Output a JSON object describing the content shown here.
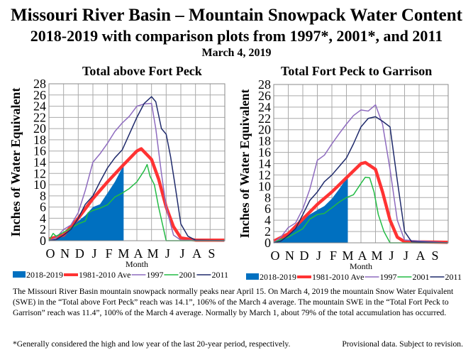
{
  "header": {
    "title": "Missouri River Basin – Mountain Snowpack Water Content",
    "subtitle": "2018-2019 with comparison plots from 1997*, 2001*, and 2011",
    "date": "March 4, 2019"
  },
  "description": "The Missouri River Basin mountain snowpack normally peaks near April 15.  On March 4, 2019 the mountain Snow Water Equivalent (SWE) in the “Total above Fort Peck” reach was 14.1”, 106% of the March 4 average.  The mountain SWE in the “Total Fort Peck to Garrison” reach was 11.4”, 100% of the March 4 average.  Normally by March 1, about 79% of the total accumulation has occurred.",
  "footnote": "*Generally considered the high and low year of the last 20-year period, respectively.",
  "provisional": "Provisional data.  Subject to revision.",
  "chart_data": [
    {
      "type": "line",
      "title": "Total above Fort Peck",
      "xlabel": "Month",
      "ylabel": "Inches of Water Equivalent",
      "ylim": [
        0,
        28
      ],
      "yticks": [
        0,
        2,
        4,
        6,
        8,
        10,
        12,
        14,
        16,
        18,
        20,
        22,
        24,
        26,
        28
      ],
      "xticks": [
        "O",
        "N",
        "D",
        "J",
        "F",
        "M",
        "A",
        "M",
        "J",
        "J",
        "A",
        "S"
      ],
      "grid": true,
      "legend": "bottom",
      "series": [
        {
          "name": "2018-2019",
          "style": "area",
          "color": "#0070C0",
          "points": [
            [
              "Oct 1",
              0
            ],
            [
              "Oct 16",
              0.3
            ],
            [
              "Nov 1",
              1
            ],
            [
              "Nov 16",
              2.5
            ],
            [
              "Dec 1",
              3.5
            ],
            [
              "Dec 16",
              4.5
            ],
            [
              "Jan 1",
              6
            ],
            [
              "Jan 16",
              6.5
            ],
            [
              "Feb 1",
              8.5
            ],
            [
              "Feb 15",
              10.5
            ],
            [
              "Mar 1",
              13
            ],
            [
              "Mar 4",
              14.1
            ]
          ]
        },
        {
          "name": "1981-2010 Ave",
          "style": "thick",
          "color": "#FF3333",
          "points": [
            [
              "Oct 1",
              0.3
            ],
            [
              "Nov 1",
              1
            ],
            [
              "Dec 1",
              4
            ],
            [
              "Jan 1",
              7.5
            ],
            [
              "Feb 1",
              10.5
            ],
            [
              "Mar 1",
              13.3
            ],
            [
              "Apr 1",
              16
            ],
            [
              "Apr 10",
              16.4
            ],
            [
              "May 1",
              14.5
            ],
            [
              "May 16",
              11
            ],
            [
              "Jun 1",
              6
            ],
            [
              "Jun 16",
              2.5
            ],
            [
              "Jul 1",
              0.5
            ],
            [
              "Aug 1",
              0.1
            ],
            [
              "Sep 30",
              0.1
            ]
          ]
        },
        {
          "name": "1997",
          "style": "line",
          "color": "#8E6BBF",
          "points": [
            [
              "Oct 1",
              0
            ],
            [
              "Oct 16",
              0.5
            ],
            [
              "Nov 1",
              2
            ],
            [
              "Nov 16",
              2.8
            ],
            [
              "Dec 1",
              5
            ],
            [
              "Dec 16",
              9
            ],
            [
              "Jan 1",
              14
            ],
            [
              "Jan 16",
              15.5
            ],
            [
              "Feb 1",
              17.4
            ],
            [
              "Feb 15",
              19.5
            ],
            [
              "Mar 1",
              21
            ],
            [
              "Mar 16",
              22.2
            ],
            [
              "Apr 1",
              24
            ],
            [
              "Apr 16",
              24.4
            ],
            [
              "May 1",
              24.5
            ],
            [
              "May 10",
              20
            ],
            [
              "May 22",
              12
            ],
            [
              "Jun 1",
              6
            ],
            [
              "Jun 16",
              1
            ],
            [
              "Jul 1",
              0.1
            ],
            [
              "Sep 30",
              0
            ]
          ]
        },
        {
          "name": "2001",
          "style": "line",
          "color": "#22BB44",
          "points": [
            [
              "Oct 1",
              0
            ],
            [
              "Oct 10",
              1.3
            ],
            [
              "Oct 16",
              0.8
            ],
            [
              "Nov 1",
              1.5
            ],
            [
              "Dec 1",
              3
            ],
            [
              "Dec 16",
              3.5
            ],
            [
              "Dec 22",
              5
            ],
            [
              "Jan 1",
              5.4
            ],
            [
              "Jan 16",
              5.8
            ],
            [
              "Feb 1",
              6.4
            ],
            [
              "Feb 15",
              7.8
            ],
            [
              "Mar 1",
              8.5
            ],
            [
              "Mar 16",
              9.3
            ],
            [
              "Apr 1",
              10.5
            ],
            [
              "Apr 16",
              12.5
            ],
            [
              "Apr 22",
              13.6
            ],
            [
              "Apr 28",
              11.5
            ],
            [
              "May 7",
              10
            ],
            [
              "May 16",
              6
            ],
            [
              "Jun 1",
              0
            ],
            [
              "Sep 30",
              0
            ]
          ]
        },
        {
          "name": "2011",
          "style": "line",
          "color": "#1F2A6B",
          "points": [
            [
              "Oct 1",
              0
            ],
            [
              "Oct 16",
              0.2
            ],
            [
              "Nov 1",
              1
            ],
            [
              "Nov 16",
              2
            ],
            [
              "Dec 1",
              4
            ],
            [
              "Dec 16",
              6.5
            ],
            [
              "Jan 1",
              8
            ],
            [
              "Jan 16",
              10.5
            ],
            [
              "Feb 1",
              13
            ],
            [
              "Feb 15",
              14.8
            ],
            [
              "Mar 1",
              16.2
            ],
            [
              "Mar 16",
              19
            ],
            [
              "Apr 1",
              22
            ],
            [
              "Apr 16",
              24.5
            ],
            [
              "May 1",
              25.7
            ],
            [
              "May 10",
              24.8
            ],
            [
              "May 22",
              20
            ],
            [
              "Jun 1",
              19
            ],
            [
              "Jun 10",
              15
            ],
            [
              "Jun 19",
              10
            ],
            [
              "Jul 1",
              3
            ],
            [
              "Jul 16",
              0.8
            ],
            [
              "Aug 1",
              0.1
            ],
            [
              "Sep 30",
              0
            ]
          ]
        }
      ]
    },
    {
      "type": "line",
      "title": "Total Fort Peck to Garrison",
      "xlabel": "Month",
      "ylabel": "Inches of Water Equivalent",
      "ylim": [
        0,
        28
      ],
      "yticks": [
        0,
        2,
        4,
        6,
        8,
        10,
        12,
        14,
        16,
        18,
        20,
        22,
        24,
        26,
        28
      ],
      "xticks": [
        "O",
        "N",
        "D",
        "J",
        "F",
        "M",
        "A",
        "M",
        "J",
        "J",
        "A",
        "S"
      ],
      "grid": true,
      "legend": "bottom",
      "series": [
        {
          "name": "2018-2019",
          "style": "area",
          "color": "#0070C0",
          "points": [
            [
              "Oct 1",
              0
            ],
            [
              "Oct 16",
              0.6
            ],
            [
              "Nov 1",
              1.3
            ],
            [
              "Nov 16",
              2.5
            ],
            [
              "Dec 1",
              4
            ],
            [
              "Dec 16",
              5
            ],
            [
              "Jan 1",
              5.8
            ],
            [
              "Jan 16",
              6.5
            ],
            [
              "Feb 1",
              7.8
            ],
            [
              "Feb 15",
              9.5
            ],
            [
              "Mar 1",
              11.4
            ],
            [
              "Mar 4",
              11.4
            ]
          ]
        },
        {
          "name": "1981-2010 Ave",
          "style": "thick",
          "color": "#FF3333",
          "points": [
            [
              "Oct 1",
              0.3
            ],
            [
              "Nov 1",
              1.6
            ],
            [
              "Dec 1",
              4.2
            ],
            [
              "Jan 1",
              6.8
            ],
            [
              "Feb 1",
              9
            ],
            [
              "Mar 1",
              11.5
            ],
            [
              "Apr 1",
              14
            ],
            [
              "Apr 10",
              14.2
            ],
            [
              "May 1",
              13
            ],
            [
              "May 16",
              9
            ],
            [
              "Jun 1",
              4
            ],
            [
              "Jun 16",
              1
            ],
            [
              "Jul 1",
              0.2
            ],
            [
              "Sep 30",
              0.1
            ]
          ]
        },
        {
          "name": "1997",
          "style": "line",
          "color": "#8E6BBF",
          "points": [
            [
              "Oct 1",
              0
            ],
            [
              "Oct 16",
              1
            ],
            [
              "Nov 1",
              2.7
            ],
            [
              "Nov 16",
              3.5
            ],
            [
              "Dec 1",
              6
            ],
            [
              "Dec 16",
              9.5
            ],
            [
              "Jan 1",
              14.6
            ],
            [
              "Jan 16",
              15.5
            ],
            [
              "Feb 1",
              17.5
            ],
            [
              "Feb 15",
              19.3
            ],
            [
              "Mar 1",
              21
            ],
            [
              "Mar 16",
              22.5
            ],
            [
              "Apr 1",
              23.5
            ],
            [
              "Apr 16",
              23.3
            ],
            [
              "May 1",
              24.4
            ],
            [
              "May 16",
              21
            ],
            [
              "Jun 1",
              13
            ],
            [
              "Jun 16",
              4
            ],
            [
              "Jul 1",
              0.5
            ],
            [
              "Sep 30",
              0
            ]
          ]
        },
        {
          "name": "2001",
          "style": "line",
          "color": "#22BB44",
          "points": [
            [
              "Oct 1",
              0
            ],
            [
              "Oct 16",
              0.6
            ],
            [
              "Nov 1",
              1
            ],
            [
              "Dec 1",
              2.5
            ],
            [
              "Dec 16",
              4.2
            ],
            [
              "Jan 1",
              5
            ],
            [
              "Jan 16",
              5.2
            ],
            [
              "Feb 1",
              6.2
            ],
            [
              "Feb 15",
              7.2
            ],
            [
              "Mar 1",
              8
            ],
            [
              "Mar 16",
              8.5
            ],
            [
              "Apr 1",
              10.5
            ],
            [
              "Apr 10",
              11.6
            ],
            [
              "Apr 19",
              11.5
            ],
            [
              "Apr 28",
              9
            ],
            [
              "May 7",
              5
            ],
            [
              "May 19",
              2
            ],
            [
              "Jun 1",
              0
            ],
            [
              "Sep 30",
              0
            ]
          ]
        },
        {
          "name": "2011",
          "style": "line",
          "color": "#1F2A6B",
          "points": [
            [
              "Oct 1",
              0
            ],
            [
              "Oct 16",
              0.3
            ],
            [
              "Nov 1",
              1.3
            ],
            [
              "Nov 16",
              2.5
            ],
            [
              "Dec 1",
              5
            ],
            [
              "Dec 16",
              7.5
            ],
            [
              "Jan 1",
              9
            ],
            [
              "Jan 16",
              10.8
            ],
            [
              "Feb 1",
              12
            ],
            [
              "Feb 15",
              13.5
            ],
            [
              "Mar 1",
              15
            ],
            [
              "Mar 16",
              17.5
            ],
            [
              "Apr 1",
              20.5
            ],
            [
              "Apr 16",
              22
            ],
            [
              "May 1",
              22.3
            ],
            [
              "May 16",
              21.5
            ],
            [
              "Jun 1",
              20.5
            ],
            [
              "Jun 16",
              11
            ],
            [
              "Jul 1",
              2
            ],
            [
              "Jul 16",
              0.2
            ],
            [
              "Sep 30",
              0
            ]
          ]
        }
      ]
    }
  ]
}
